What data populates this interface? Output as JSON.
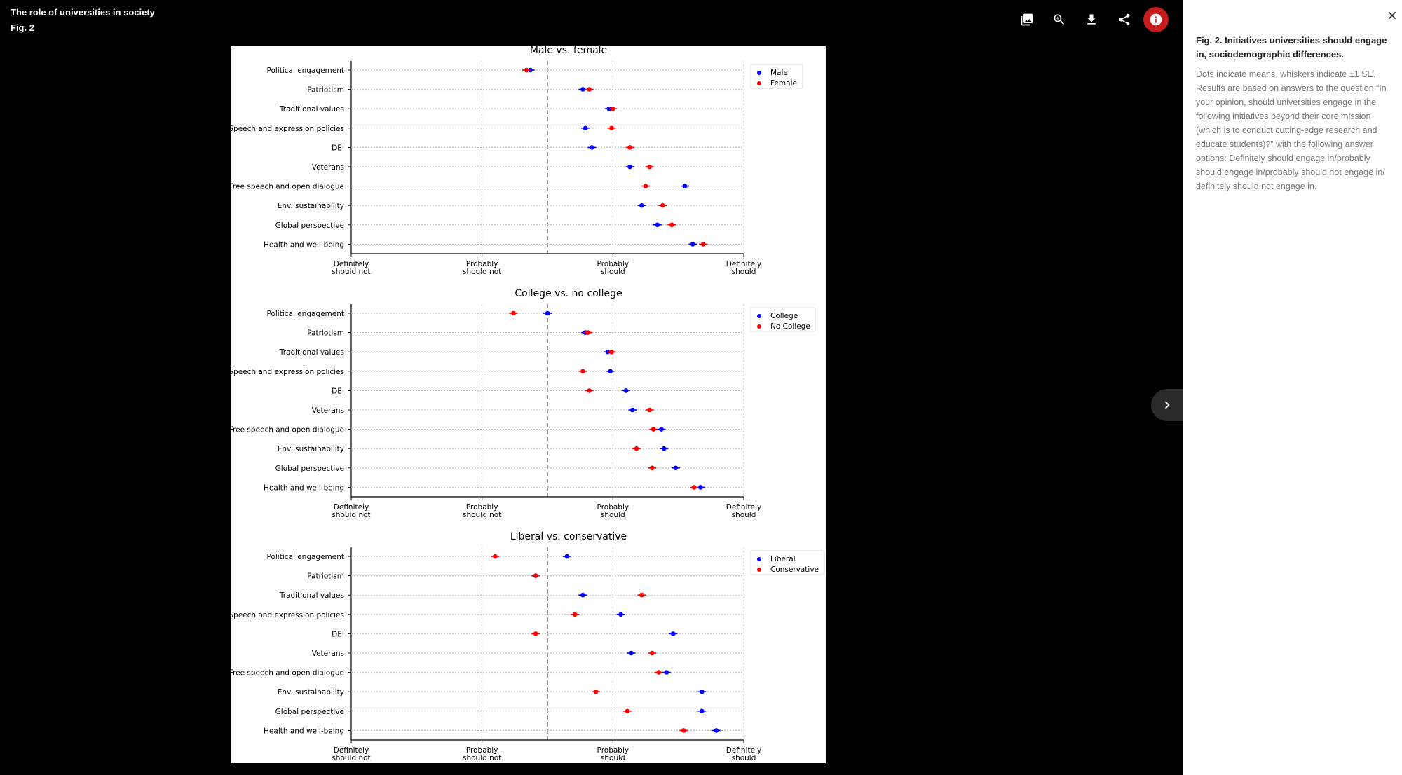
{
  "header": {
    "title": "The role of universities in society",
    "figure": "Fig. 2"
  },
  "toolbar": {
    "icons": [
      "image-icon",
      "zoom-in-icon",
      "download-icon",
      "share-icon",
      "info-icon"
    ]
  },
  "caption": {
    "title": "Fig. 2. Initiatives universities should engage in, sociodemographic differences.",
    "text": "Dots indicate means, whiskers indicate ±1 SE. Results are based on answers to the question “In your opinion, should universities engage in the following initiatives beyond their core mission (which is to conduct cutting-edge research and educate students)?” with the following answer options: Definitely should engage in/probably should engage in/probably should not engage in/ definitely should not engage in."
  },
  "colors": {
    "series_1": "#0000ff",
    "series_2": "#ff0000",
    "info_button": "#c61c1c"
  },
  "chart_data": [
    {
      "type": "scatter",
      "title": "Male vs. female",
      "categories": [
        "Political engagement",
        "Patriotism",
        "Traditional values",
        "Speech and expression policies",
        "DEI",
        "Veterans",
        "Free speech and open dialogue",
        "Env. sustainability",
        "Global perspective",
        "Health and well-being"
      ],
      "xticks": [
        "Definitely\nshould not",
        "Probably\nshould not",
        "Probably\nshould",
        "Definitely\nshould"
      ],
      "xlim": [
        1,
        4
      ],
      "reference_line": 2.5,
      "legend_position": "top-right",
      "series": [
        {
          "name": "Male",
          "values": [
            2.37,
            2.77,
            2.97,
            2.79,
            2.84,
            3.13,
            3.55,
            3.22,
            3.34,
            3.61
          ]
        },
        {
          "name": "Female",
          "values": [
            2.34,
            2.82,
            3.0,
            2.99,
            3.13,
            3.28,
            3.25,
            3.38,
            3.45,
            3.69
          ]
        }
      ]
    },
    {
      "type": "scatter",
      "title": "College vs. no college",
      "categories": [
        "Political engagement",
        "Patriotism",
        "Traditional values",
        "Speech and expression policies",
        "DEI",
        "Veterans",
        "Free speech and open dialogue",
        "Env. sustainability",
        "Global perspective",
        "Health and well-being"
      ],
      "xticks": [
        "Definitely\nshould not",
        "Probably\nshould not",
        "Probably\nshould",
        "Definitely\nshould"
      ],
      "xlim": [
        1,
        4
      ],
      "reference_line": 2.5,
      "legend_position": "top-right",
      "series": [
        {
          "name": "College",
          "values": [
            2.5,
            2.79,
            2.96,
            2.98,
            3.1,
            3.15,
            3.37,
            3.39,
            3.48,
            3.67
          ]
        },
        {
          "name": "No College",
          "values": [
            2.24,
            2.81,
            2.99,
            2.77,
            2.82,
            3.28,
            3.31,
            3.18,
            3.3,
            3.62
          ]
        }
      ]
    },
    {
      "type": "scatter",
      "title": "Liberal vs. conservative",
      "categories": [
        "Political engagement",
        "Patriotism",
        "Traditional values",
        "Speech and expression policies",
        "DEI",
        "Veterans",
        "Free speech and open dialogue",
        "Env. sustainability",
        "Global perspective",
        "Health and well-being"
      ],
      "xticks": [
        "Definitely\nshould not",
        "Probably\nshould not",
        "Probably\nshould",
        "Definitely\nshould"
      ],
      "xlim": [
        1,
        4
      ],
      "reference_line": 2.5,
      "legend_position": "top-right",
      "series": [
        {
          "name": "Liberal",
          "values": [
            2.65,
            2.41,
            2.77,
            3.06,
            3.46,
            3.14,
            3.41,
            3.68,
            3.68,
            3.79
          ]
        },
        {
          "name": "Conservative",
          "values": [
            2.1,
            2.41,
            3.22,
            2.71,
            2.41,
            3.3,
            3.35,
            2.87,
            3.11,
            3.54
          ]
        }
      ]
    }
  ]
}
